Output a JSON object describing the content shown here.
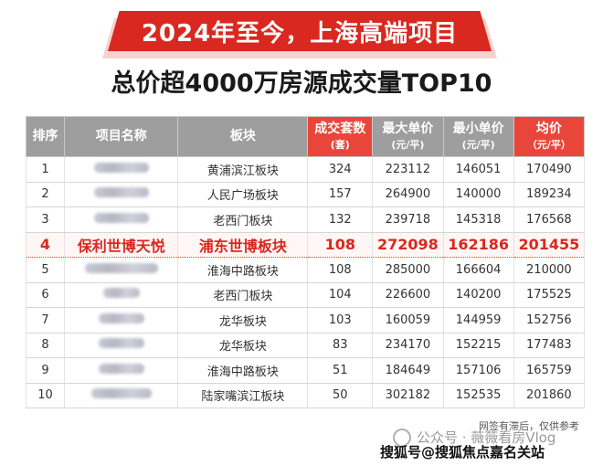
{
  "banner": "2024年至今，上海高端项目",
  "subtitle": "总价超4000万房源成交量TOP10",
  "headers": {
    "rank": "排序",
    "project": "项目名称",
    "district": "板块",
    "volume": "成交套数",
    "volume_unit": "(套)",
    "max_price": "最大单价",
    "max_price_unit": "(元/平)",
    "min_price": "最小单价",
    "min_price_unit": "(元/平)",
    "avg_price": "均价",
    "avg_price_unit": "（元/平）"
  },
  "rows": [
    {
      "rank": "1",
      "district": "黄浦滨江板块",
      "volume": "324",
      "max": "223112",
      "min": "146051",
      "avg": "170490"
    },
    {
      "rank": "2",
      "district": "人民广场板块",
      "volume": "157",
      "max": "264900",
      "min": "140000",
      "avg": "189234"
    },
    {
      "rank": "3",
      "district": "老西门板块",
      "volume": "132",
      "max": "239718",
      "min": "145318",
      "avg": "176568"
    },
    {
      "rank": "4",
      "project": "保利世博天悦",
      "district": "浦东世博板块",
      "volume": "108",
      "max": "272098",
      "min": "162186",
      "avg": "201455"
    },
    {
      "rank": "5",
      "district": "淮海中路板块",
      "volume": "108",
      "max": "285000",
      "min": "166604",
      "avg": "210000"
    },
    {
      "rank": "6",
      "district": "老西门板块",
      "volume": "104",
      "max": "226600",
      "min": "140200",
      "avg": "175525"
    },
    {
      "rank": "7",
      "district": "龙华板块",
      "volume": "103",
      "max": "160059",
      "min": "144959",
      "avg": "152756"
    },
    {
      "rank": "8",
      "district": "龙华板块",
      "volume": "83",
      "max": "234170",
      "min": "152215",
      "avg": "177483"
    },
    {
      "rank": "9",
      "district": "淮海中路板块",
      "volume": "51",
      "max": "184649",
      "min": "157106",
      "avg": "165759"
    },
    {
      "rank": "10",
      "district": "陆家嘴滨江板块",
      "volume": "50",
      "max": "302182",
      "min": "152535",
      "avg": "201860"
    }
  ],
  "note": "网签有滞后，仅供参考",
  "watermark_top": "公众号 · 薇薇看房Vlog",
  "watermark_bottom": "搜狐号@搜狐焦点嘉名关站"
}
